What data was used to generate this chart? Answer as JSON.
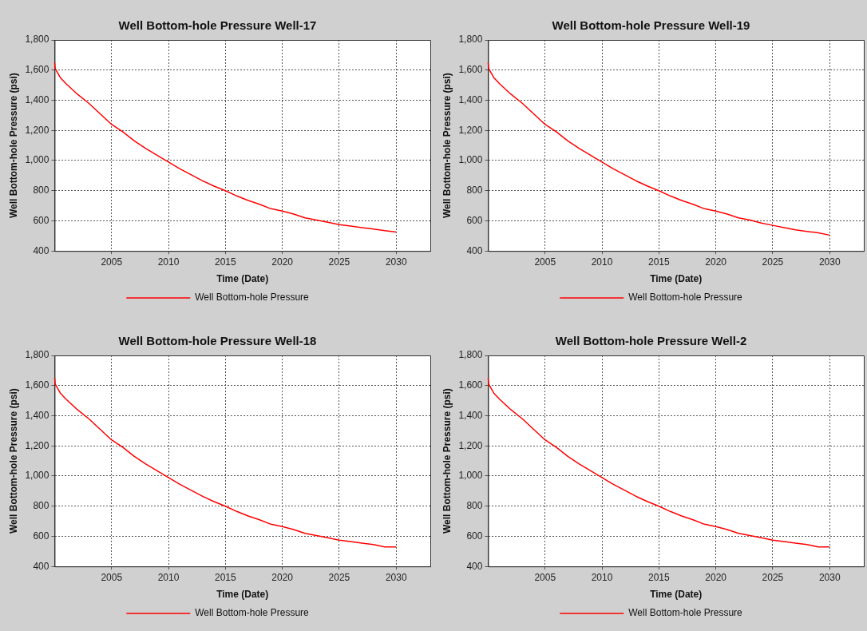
{
  "chart_data": [
    {
      "type": "line",
      "title": "Well Bottom-hole Pressure Well-17",
      "xlabel": "Time (Date)",
      "ylabel": "Well Bottom-hole Pressure (psi)",
      "x": [
        2000,
        2000.05,
        2000.5,
        2001,
        2002,
        2003,
        2004,
        2005,
        2006,
        2007,
        2008,
        2009,
        2010,
        2011,
        2012,
        2013,
        2014,
        2015,
        2016,
        2017,
        2018,
        2019,
        2020,
        2021,
        2022,
        2023,
        2024,
        2025,
        2026,
        2027,
        2028,
        2029,
        2030
      ],
      "series": [
        {
          "name": "Well Bottom-hole Pressure",
          "color": "#ff0000",
          "values": [
            1650,
            1610,
            1550,
            1510,
            1440,
            1380,
            1310,
            1240,
            1190,
            1130,
            1080,
            1035,
            990,
            945,
            905,
            865,
            830,
            800,
            765,
            735,
            710,
            680,
            665,
            645,
            620,
            605,
            590,
            575,
            565,
            555,
            545,
            535,
            525
          ]
        }
      ],
      "xlim": [
        2000,
        2033
      ],
      "xticks": [
        2005,
        2010,
        2015,
        2020,
        2025,
        2030
      ],
      "ylim": [
        400,
        1800
      ],
      "yticks": [
        400,
        600,
        800,
        {
          "value": 1000,
          "label": "1,000"
        },
        {
          "value": 1200,
          "label": "1,200"
        },
        {
          "value": 1400,
          "label": "1,400"
        },
        {
          "value": 1600,
          "label": "1,600"
        },
        {
          "value": 1800,
          "label": "1,800"
        }
      ],
      "grid": true,
      "legend": "bottom",
      "marker": "none"
    },
    {
      "type": "line",
      "title": "Well Bottom-hole Pressure Well-19",
      "xlabel": "Time (Date)",
      "ylabel": "Well Bottom-hole Pressure (psi)",
      "x": [
        2000,
        2000.05,
        2000.5,
        2001,
        2002,
        2003,
        2004,
        2005,
        2006,
        2007,
        2008,
        2009,
        2010,
        2011,
        2012,
        2013,
        2014,
        2015,
        2016,
        2017,
        2018,
        2019,
        2020,
        2021,
        2022,
        2023,
        2024,
        2025,
        2026,
        2027,
        2028,
        2029,
        2030
      ],
      "series": [
        {
          "name": "Well Bottom-hole Pressure",
          "color": "#ff0000",
          "values": [
            1650,
            1610,
            1550,
            1510,
            1440,
            1380,
            1310,
            1240,
            1190,
            1130,
            1080,
            1035,
            990,
            945,
            905,
            865,
            830,
            800,
            765,
            735,
            710,
            680,
            665,
            645,
            620,
            605,
            585,
            570,
            555,
            540,
            530,
            520,
            505
          ]
        }
      ],
      "xlim": [
        2000,
        2033
      ],
      "xticks": [
        2005,
        2010,
        2015,
        2020,
        2025,
        2030
      ],
      "ylim": [
        400,
        1800
      ],
      "yticks": [
        400,
        600,
        800,
        {
          "value": 1000,
          "label": "1,000"
        },
        {
          "value": 1200,
          "label": "1,200"
        },
        {
          "value": 1400,
          "label": "1,400"
        },
        {
          "value": 1600,
          "label": "1,600"
        },
        {
          "value": 1800,
          "label": "1,800"
        }
      ],
      "grid": true,
      "legend": "bottom",
      "marker": "none"
    },
    {
      "type": "line",
      "title": "Well Bottom-hole Pressure Well-18",
      "xlabel": "Time (Date)",
      "ylabel": "Well Bottom-hole Pressure (psi)",
      "x": [
        2000,
        2000.05,
        2000.5,
        2001,
        2002,
        2003,
        2004,
        2005,
        2006,
        2007,
        2008,
        2009,
        2010,
        2011,
        2012,
        2013,
        2014,
        2015,
        2016,
        2017,
        2018,
        2019,
        2020,
        2021,
        2022,
        2023,
        2024,
        2025,
        2026,
        2027,
        2028,
        2029,
        2030
      ],
      "series": [
        {
          "name": "Well Bottom-hole Pressure",
          "color": "#ff0000",
          "values": [
            1650,
            1610,
            1550,
            1510,
            1440,
            1380,
            1310,
            1240,
            1190,
            1130,
            1080,
            1035,
            990,
            945,
            905,
            865,
            830,
            800,
            765,
            735,
            710,
            680,
            665,
            645,
            620,
            605,
            590,
            575,
            565,
            555,
            545,
            530,
            530
          ]
        }
      ],
      "xlim": [
        2000,
        2033
      ],
      "xticks": [
        2005,
        2010,
        2015,
        2020,
        2025,
        2030
      ],
      "ylim": [
        400,
        1800
      ],
      "yticks": [
        400,
        600,
        800,
        {
          "value": 1000,
          "label": "1,000"
        },
        {
          "value": 1200,
          "label": "1,200"
        },
        {
          "value": 1400,
          "label": "1,400"
        },
        {
          "value": 1600,
          "label": "1,600"
        },
        {
          "value": 1800,
          "label": "1,800"
        }
      ],
      "grid": true,
      "legend": "bottom",
      "marker": "none"
    },
    {
      "type": "line",
      "title": "Well Bottom-hole Pressure Well-2",
      "xlabel": "Time (Date)",
      "ylabel": "Well Bottom-hole Pressure (psi)",
      "x": [
        2000,
        2000.05,
        2000.5,
        2001,
        2002,
        2003,
        2004,
        2005,
        2006,
        2007,
        2008,
        2009,
        2010,
        2011,
        2012,
        2013,
        2014,
        2015,
        2016,
        2017,
        2018,
        2019,
        2020,
        2021,
        2022,
        2023,
        2024,
        2025,
        2026,
        2027,
        2028,
        2029,
        2030
      ],
      "series": [
        {
          "name": "Well Bottom-hole Pressure",
          "color": "#ff0000",
          "values": [
            1650,
            1610,
            1550,
            1510,
            1440,
            1380,
            1310,
            1240,
            1190,
            1130,
            1080,
            1035,
            990,
            945,
            905,
            865,
            830,
            800,
            765,
            735,
            710,
            680,
            665,
            645,
            620,
            605,
            590,
            575,
            565,
            555,
            545,
            530,
            530
          ]
        }
      ],
      "xlim": [
        2000,
        2033
      ],
      "xticks": [
        2005,
        2010,
        2015,
        2020,
        2025,
        2030
      ],
      "ylim": [
        400,
        1800
      ],
      "yticks": [
        400,
        600,
        800,
        {
          "value": 1000,
          "label": "1,000"
        },
        {
          "value": 1200,
          "label": "1,200"
        },
        {
          "value": 1400,
          "label": "1,400"
        },
        {
          "value": 1600,
          "label": "1,600"
        },
        {
          "value": 1800,
          "label": "1,800"
        }
      ],
      "grid": true,
      "legend": "bottom",
      "marker": "none"
    }
  ]
}
